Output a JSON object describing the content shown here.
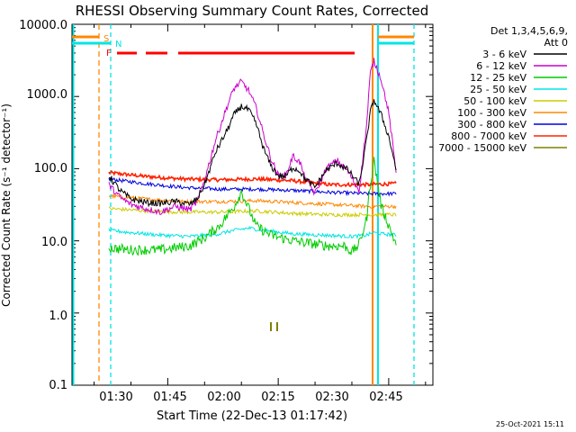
{
  "chart_data": {
    "type": "line",
    "title": "RHESSI Observing Summary Count Rates, Corrected",
    "xlabel": "Start Time (22-Dec-13 01:17:42)",
    "ylabel": "Corrected Count Rate (s⁻¹ detector⁻¹)",
    "y_scale": "log",
    "ylim": [
      0.1,
      10000
    ],
    "xlim_minutes_after_0117": [
      0,
      49
    ],
    "y_ticks": [
      "10000.0",
      "1000.0",
      "100.0",
      "10.0",
      "1.0",
      "0.1"
    ],
    "x_ticks": [
      "01:30",
      "01:45",
      "02:00",
      "02:15",
      "02:30",
      "02:45"
    ],
    "legend_header": [
      "Det 1,3,4,5,6,9,",
      "Att 0"
    ],
    "legend_position": "right",
    "series": [
      {
        "name": "3 - 6 keV",
        "color": "#000000",
        "x": [
          5.0,
          6.5,
          8.0,
          10.0,
          12.0,
          14.0,
          16.0,
          17.0,
          18.0,
          19.5,
          21.0,
          22.0,
          23.0,
          24.0,
          25.0,
          26.0,
          27.0,
          28.0,
          29.0,
          30.0,
          31.0,
          31.5,
          33.0,
          34.5,
          36.0,
          37.5,
          39.0,
          40.0,
          40.5,
          41.0,
          42.0,
          43.0,
          44.0
        ],
        "y": [
          80,
          50,
          38,
          34,
          33,
          35,
          32,
          38,
          60,
          170,
          330,
          560,
          730,
          650,
          420,
          190,
          110,
          80,
          78,
          105,
          92,
          75,
          55,
          95,
          120,
          95,
          60,
          250,
          600,
          900,
          550,
          280,
          100
        ]
      },
      {
        "name": "6 - 12 keV",
        "color": "#cc00cc",
        "x": [
          5.0,
          6.5,
          8.0,
          10.0,
          12.0,
          14.0,
          16.0,
          17.0,
          18.0,
          19.5,
          21.0,
          22.0,
          23.0,
          24.0,
          25.0,
          26.0,
          27.0,
          28.0,
          29.0,
          30.0,
          31.0,
          31.5,
          33.0,
          34.5,
          36.0,
          37.5,
          39.0,
          40.0,
          40.5,
          41.0,
          42.0,
          43.0,
          44.0
        ],
        "y": [
          60,
          40,
          32,
          28,
          25,
          30,
          27,
          35,
          70,
          250,
          700,
          1300,
          1600,
          1200,
          700,
          300,
          140,
          80,
          80,
          150,
          120,
          80,
          45,
          100,
          130,
          90,
          50,
          400,
          2100,
          3100,
          1700,
          600,
          90
        ]
      },
      {
        "name": "12 - 25 keV",
        "color": "#00cc00",
        "x": [
          5.0,
          8.0,
          12.0,
          16.0,
          18.0,
          20.0,
          22.0,
          23.0,
          24.0,
          25.0,
          27.0,
          30.0,
          33.0,
          35.0,
          37.0,
          38.0,
          39.0,
          40.0,
          40.5,
          41.0,
          42.0,
          44.0
        ],
        "y": [
          8,
          7.5,
          7.5,
          8.5,
          11,
          16,
          30,
          48,
          28,
          16,
          12,
          10,
          9,
          8.5,
          8.5,
          7,
          9,
          20,
          60,
          130,
          30,
          9
        ]
      },
      {
        "name": "25 - 50 keV",
        "color": "#00e5e5",
        "x": [
          5.0,
          8.0,
          12.0,
          16.0,
          20.0,
          22.0,
          24.0,
          26.0,
          30.0,
          34.0,
          38.0,
          40.0,
          41.0,
          42.0,
          44.0
        ],
        "y": [
          14,
          13,
          12,
          11.5,
          12.5,
          14,
          15,
          14,
          12.5,
          12,
          11.5,
          12,
          13,
          12.5,
          12
        ]
      },
      {
        "name": "50 - 100 keV",
        "color": "#cccc00",
        "x": [
          5.0,
          10.0,
          15.0,
          20.0,
          25.0,
          30.0,
          35.0,
          40.0,
          44.0
        ],
        "y": [
          28,
          26,
          25,
          25,
          26,
          24,
          23,
          23,
          23
        ]
      },
      {
        "name": "100 - 300 keV",
        "color": "#ff8800",
        "x": [
          5.0,
          10.0,
          15.0,
          20.0,
          25.0,
          30.0,
          35.0,
          40.0,
          44.0
        ],
        "y": [
          42,
          38,
          35,
          35,
          36,
          34,
          32,
          30,
          30
        ]
      },
      {
        "name": "300 - 800 keV",
        "color": "#0000dd",
        "x": [
          5.0,
          10.0,
          15.0,
          20.0,
          25.0,
          30.0,
          35.0,
          40.0,
          44.0
        ],
        "y": [
          72,
          62,
          55,
          52,
          52,
          50,
          47,
          45,
          45
        ]
      },
      {
        "name": "800 - 7000 keV",
        "color": "#ff2200",
        "x": [
          5.0,
          10.0,
          15.0,
          20.0,
          25.0,
          30.0,
          35.0,
          40.0,
          44.0
        ],
        "y": [
          88,
          78,
          72,
          70,
          72,
          68,
          60,
          60,
          62
        ]
      },
      {
        "name": "7000 - 15000 keV",
        "color": "#808000",
        "x": [],
        "y": []
      }
    ],
    "flags": [
      {
        "label": "S",
        "color": "#ff8800"
      },
      {
        "label": "N",
        "color": "#00e5e5"
      },
      {
        "label": "F",
        "color": "#ff0000"
      }
    ],
    "grid": false
  },
  "footer_timestamp": "25-Oct-2021 15:11",
  "colors": {
    "saa_line": "#ff8800",
    "night_line": "#00e5e5",
    "flare_bar": "#ff0000",
    "attenuator_mark": "#808000"
  }
}
